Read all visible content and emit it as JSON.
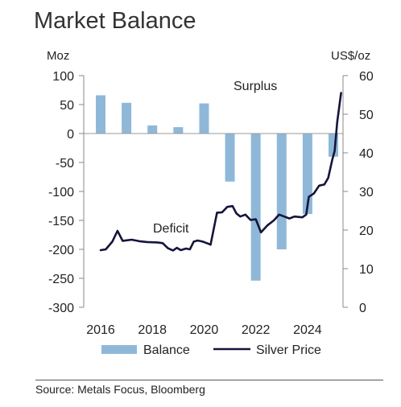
{
  "title": "Market Balance",
  "source": "Source: Metals Focus, Bloomberg",
  "chart_data": {
    "type": "bar+line",
    "title": "Market Balance",
    "left_axis": {
      "label": "Moz",
      "range": [
        -300,
        100
      ],
      "ticks": [
        100,
        50,
        0,
        -50,
        -100,
        -150,
        -200,
        -250,
        -300
      ]
    },
    "right_axis": {
      "label": "US$/oz",
      "range": [
        0,
        60
      ],
      "ticks": [
        60,
        50,
        40,
        30,
        20,
        10,
        0
      ]
    },
    "x_axis": {
      "range": [
        2016,
        2025
      ],
      "ticks": [
        2016,
        2018,
        2020,
        2022,
        2024
      ]
    },
    "annotations": [
      {
        "text": "Surplus"
      },
      {
        "text": "Deficit"
      }
    ],
    "legend": {
      "placement": "bottom"
    },
    "series": [
      {
        "name": "Balance",
        "type": "bar",
        "axis": "left",
        "color": "#8fb8d8",
        "x": [
          2016,
          2017,
          2018,
          2019,
          2020,
          2021,
          2022,
          2023,
          2024,
          2025
        ],
        "values": [
          66,
          53,
          14,
          11,
          52,
          -83,
          -254,
          -200,
          -139,
          -40
        ]
      },
      {
        "name": "Silver Price",
        "type": "line",
        "axis": "right",
        "color": "#14143c",
        "points": [
          [
            2016.0,
            14.8
          ],
          [
            2016.2,
            15.0
          ],
          [
            2016.45,
            17.0
          ],
          [
            2016.65,
            19.8
          ],
          [
            2016.85,
            17.2
          ],
          [
            2017.2,
            17.5
          ],
          [
            2017.5,
            17.1
          ],
          [
            2017.8,
            16.9
          ],
          [
            2018.2,
            16.8
          ],
          [
            2018.4,
            16.6
          ],
          [
            2018.6,
            15.3
          ],
          [
            2018.8,
            14.7
          ],
          [
            2018.95,
            15.4
          ],
          [
            2019.1,
            14.8
          ],
          [
            2019.3,
            15.2
          ],
          [
            2019.45,
            15.0
          ],
          [
            2019.6,
            17.0
          ],
          [
            2019.75,
            17.3
          ],
          [
            2019.95,
            17.0
          ],
          [
            2020.15,
            16.5
          ],
          [
            2020.25,
            16.2
          ],
          [
            2020.5,
            24.5
          ],
          [
            2020.7,
            24.6
          ],
          [
            2020.9,
            26.0
          ],
          [
            2021.1,
            26.2
          ],
          [
            2021.25,
            24.3
          ],
          [
            2021.4,
            23.5
          ],
          [
            2021.6,
            24.0
          ],
          [
            2021.8,
            22.6
          ],
          [
            2022.0,
            22.8
          ],
          [
            2022.2,
            19.4
          ],
          [
            2022.45,
            21.2
          ],
          [
            2022.7,
            22.5
          ],
          [
            2022.9,
            24.0
          ],
          [
            2023.1,
            23.5
          ],
          [
            2023.3,
            23.0
          ],
          [
            2023.5,
            23.5
          ],
          [
            2023.8,
            23.3
          ],
          [
            2023.95,
            24.0
          ],
          [
            2024.05,
            28.6
          ],
          [
            2024.25,
            29.5
          ],
          [
            2024.45,
            31.5
          ],
          [
            2024.65,
            31.8
          ],
          [
            2024.8,
            33.5
          ],
          [
            2024.95,
            38.0
          ],
          [
            2025.05,
            40.5
          ],
          [
            2025.15,
            48.0
          ],
          [
            2025.3,
            55.5
          ]
        ]
      }
    ]
  }
}
